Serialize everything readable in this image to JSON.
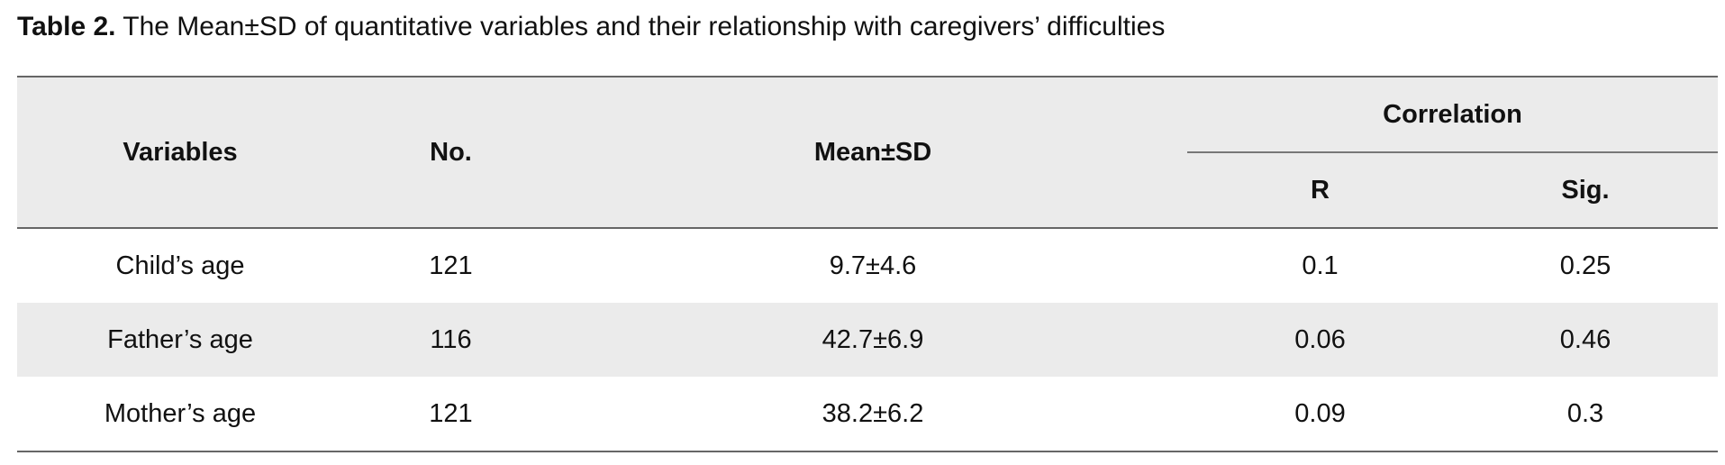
{
  "caption": {
    "label": "Table 2.",
    "text": " The Mean±SD of quantitative variables and their relationship with caregivers’ difficulties"
  },
  "table": {
    "headers": {
      "variables": "Variables",
      "no": "No.",
      "mean_sd": "Mean±SD",
      "correlation": "Correlation",
      "r": "R",
      "sig": "Sig."
    },
    "rows": [
      {
        "variable": "Child’s age",
        "no": "121",
        "mean_sd": "9.7±4.6",
        "r": "0.1",
        "sig": "0.25"
      },
      {
        "variable": "Father’s age",
        "no": "116",
        "mean_sd": "42.7±6.9",
        "r": "0.06",
        "sig": "0.46"
      },
      {
        "variable": "Mother’s age",
        "no": "121",
        "mean_sd": "38.2±6.2",
        "r": "0.09",
        "sig": "0.3"
      }
    ]
  }
}
